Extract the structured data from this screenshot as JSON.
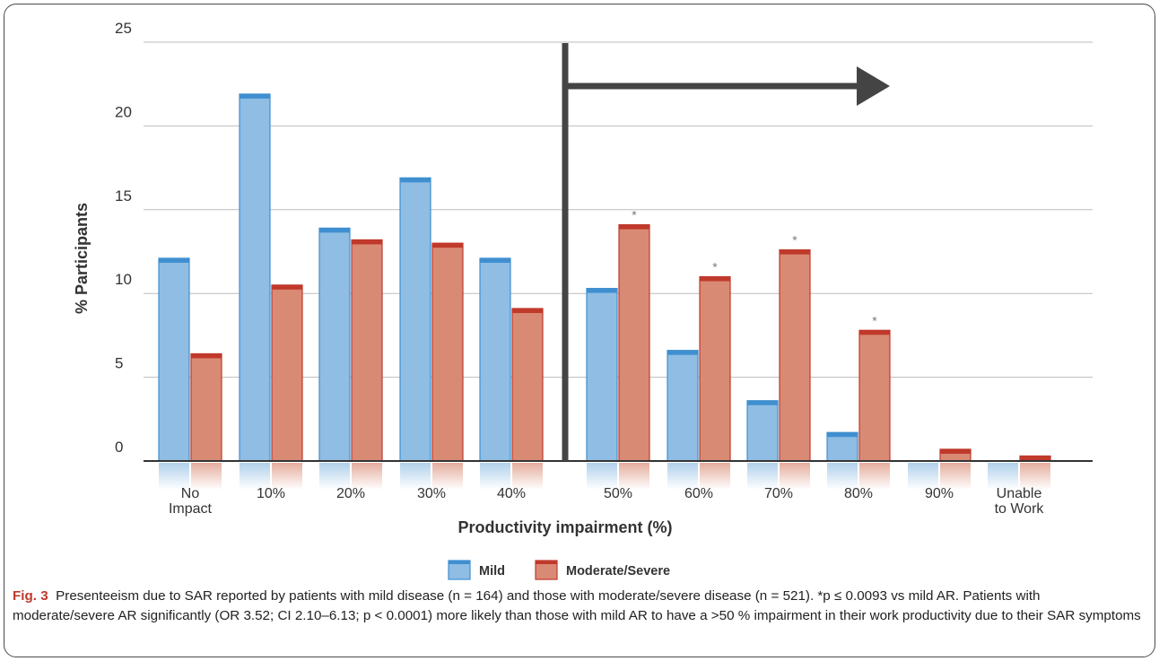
{
  "chart_data": {
    "type": "bar",
    "xlabel": "Productivity impairment (%)",
    "ylabel": "% Participants",
    "ylim": [
      0,
      25
    ],
    "yticks": [
      "0",
      "5",
      "10",
      "15",
      "20",
      "25"
    ],
    "grid": true,
    "legend_position": "bottom-center",
    "categories": [
      [
        "No",
        "Impact"
      ],
      [
        "10%"
      ],
      [
        "20%"
      ],
      [
        "30%"
      ],
      [
        "40%"
      ],
      [
        "50%"
      ],
      [
        "60%"
      ],
      [
        "70%"
      ],
      [
        "80%"
      ],
      [
        "90%"
      ],
      [
        "Unable",
        "to Work"
      ]
    ],
    "series": [
      {
        "name": "Mild",
        "color": "#8fbde3",
        "edge": "#3f8fd0",
        "values": [
          12.1,
          21.9,
          13.9,
          16.9,
          12.1,
          10.3,
          6.6,
          3.6,
          1.7,
          0,
          0
        ]
      },
      {
        "name": "Moderate/Severe",
        "color": "#d98a74",
        "edge": "#c0392b",
        "values": [
          6.4,
          10.5,
          13.2,
          13.0,
          9.1,
          14.1,
          11.0,
          12.6,
          7.8,
          0.7,
          0.3
        ]
      }
    ],
    "significance_marker": "*",
    "significant_indices": [
      5,
      6,
      7,
      8
    ],
    "threshold_after_index": 4
  },
  "caption": {
    "label": "Fig. 3",
    "text": "Presenteeism due to SAR reported by patients with mild disease (n = 164) and those with moderate/severe disease (n = 521). *p ≤ 0.0093 vs mild AR. Patients with moderate/severe AR significantly (OR 3.52; CI 2.10–6.13; p < 0.0001) more likely than those with mild AR to have a >50 % impairment in their work productivity due to their SAR symptoms"
  }
}
